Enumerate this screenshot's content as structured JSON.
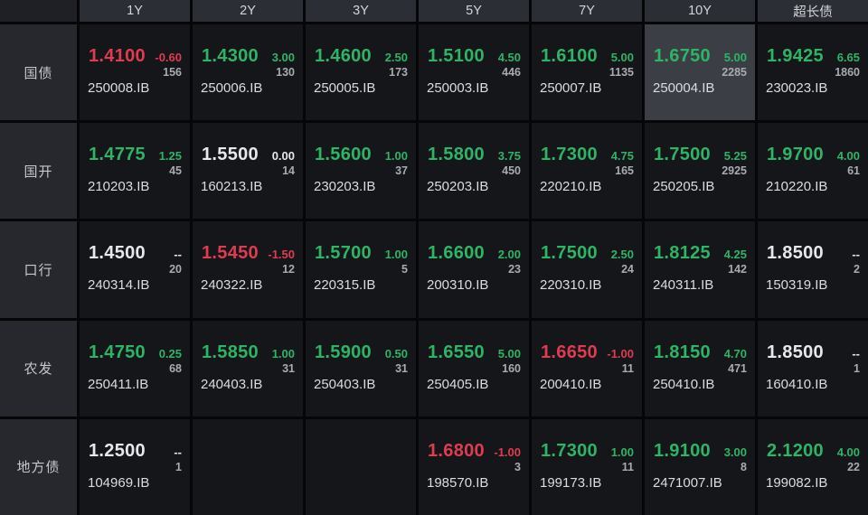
{
  "columns": [
    "1Y",
    "2Y",
    "3Y",
    "5Y",
    "7Y",
    "10Y",
    "超长债"
  ],
  "colors": {
    "up": "#2db465",
    "down": "#e03b50",
    "flat": "#e6e8ea",
    "count_gray": "#a8abb0",
    "code_white": "#dadcde",
    "cell_bg": "#14161a",
    "highlight_bg": "#3b3e44",
    "header_bg": "#2b2e34",
    "label_bg": "#26282d"
  },
  "rows": [
    {
      "label": "国债",
      "cells": [
        {
          "rate": "1.4100",
          "dir": "down",
          "change": "-0.60",
          "count": "156",
          "code": "250008.IB"
        },
        {
          "rate": "1.4300",
          "dir": "up",
          "change": "3.00",
          "count": "130",
          "code": "250006.IB"
        },
        {
          "rate": "1.4600",
          "dir": "up",
          "change": "2.50",
          "count": "173",
          "code": "250005.IB"
        },
        {
          "rate": "1.5100",
          "dir": "up",
          "change": "4.50",
          "count": "446",
          "code": "250003.IB"
        },
        {
          "rate": "1.6100",
          "dir": "up",
          "change": "5.00",
          "count": "1135",
          "code": "250007.IB"
        },
        {
          "rate": "1.6750",
          "dir": "up",
          "change": "5.00",
          "count": "2285",
          "code": "250004.IB",
          "highlight": true
        },
        {
          "rate": "1.9425",
          "dir": "up",
          "change": "6.65",
          "count": "1860",
          "code": "230023.IB"
        }
      ]
    },
    {
      "label": "国开",
      "cells": [
        {
          "rate": "1.4775",
          "dir": "up",
          "change": "1.25",
          "count": "45",
          "code": "210203.IB"
        },
        {
          "rate": "1.5500",
          "dir": "flat",
          "change": "0.00",
          "count": "14",
          "code": "160213.IB"
        },
        {
          "rate": "1.5600",
          "dir": "up",
          "change": "1.00",
          "count": "37",
          "code": "230203.IB"
        },
        {
          "rate": "1.5800",
          "dir": "up",
          "change": "3.75",
          "count": "450",
          "code": "250203.IB"
        },
        {
          "rate": "1.7300",
          "dir": "up",
          "change": "4.75",
          "count": "165",
          "code": "220210.IB"
        },
        {
          "rate": "1.7500",
          "dir": "up",
          "change": "5.25",
          "count": "2925",
          "code": "250205.IB"
        },
        {
          "rate": "1.9700",
          "dir": "up",
          "change": "4.00",
          "count": "61",
          "code": "210220.IB"
        }
      ]
    },
    {
      "label": "口行",
      "cells": [
        {
          "rate": "1.4500",
          "dir": "flat",
          "change": "--",
          "count": "20",
          "code": "240314.IB"
        },
        {
          "rate": "1.5450",
          "dir": "down",
          "change": "-1.50",
          "count": "12",
          "code": "240322.IB"
        },
        {
          "rate": "1.5700",
          "dir": "up",
          "change": "1.00",
          "count": "5",
          "code": "220315.IB"
        },
        {
          "rate": "1.6600",
          "dir": "up",
          "change": "2.00",
          "count": "23",
          "code": "200310.IB"
        },
        {
          "rate": "1.7500",
          "dir": "up",
          "change": "2.50",
          "count": "24",
          "code": "220310.IB"
        },
        {
          "rate": "1.8125",
          "dir": "up",
          "change": "4.25",
          "count": "142",
          "code": "240311.IB"
        },
        {
          "rate": "1.8500",
          "dir": "flat",
          "change": "--",
          "count": "2",
          "code": "150319.IB"
        }
      ]
    },
    {
      "label": "农发",
      "cells": [
        {
          "rate": "1.4750",
          "dir": "up",
          "change": "0.25",
          "count": "68",
          "code": "250411.IB"
        },
        {
          "rate": "1.5850",
          "dir": "up",
          "change": "1.00",
          "count": "31",
          "code": "240403.IB"
        },
        {
          "rate": "1.5900",
          "dir": "up",
          "change": "0.50",
          "count": "31",
          "code": "250403.IB"
        },
        {
          "rate": "1.6550",
          "dir": "up",
          "change": "5.00",
          "count": "160",
          "code": "250405.IB"
        },
        {
          "rate": "1.6650",
          "dir": "down",
          "change": "-1.00",
          "count": "11",
          "code": "200410.IB"
        },
        {
          "rate": "1.8150",
          "dir": "up",
          "change": "4.70",
          "count": "471",
          "code": "250410.IB"
        },
        {
          "rate": "1.8500",
          "dir": "flat",
          "change": "--",
          "count": "1",
          "code": "160410.IB"
        }
      ]
    },
    {
      "label": "地方债",
      "cells": [
        {
          "rate": "1.2500",
          "dir": "flat",
          "change": "--",
          "count": "1",
          "code": "104969.IB"
        },
        {
          "empty": true
        },
        {
          "empty": true
        },
        {
          "rate": "1.6800",
          "dir": "down",
          "change": "-1.00",
          "count": "3",
          "code": "198570.IB"
        },
        {
          "rate": "1.7300",
          "dir": "up",
          "change": "1.00",
          "count": "11",
          "code": "199173.IB"
        },
        {
          "rate": "1.9100",
          "dir": "up",
          "change": "3.00",
          "count": "8",
          "code": "2471007.IB"
        },
        {
          "rate": "2.1200",
          "dir": "up",
          "change": "4.00",
          "count": "22",
          "code": "199082.IB"
        }
      ]
    }
  ]
}
